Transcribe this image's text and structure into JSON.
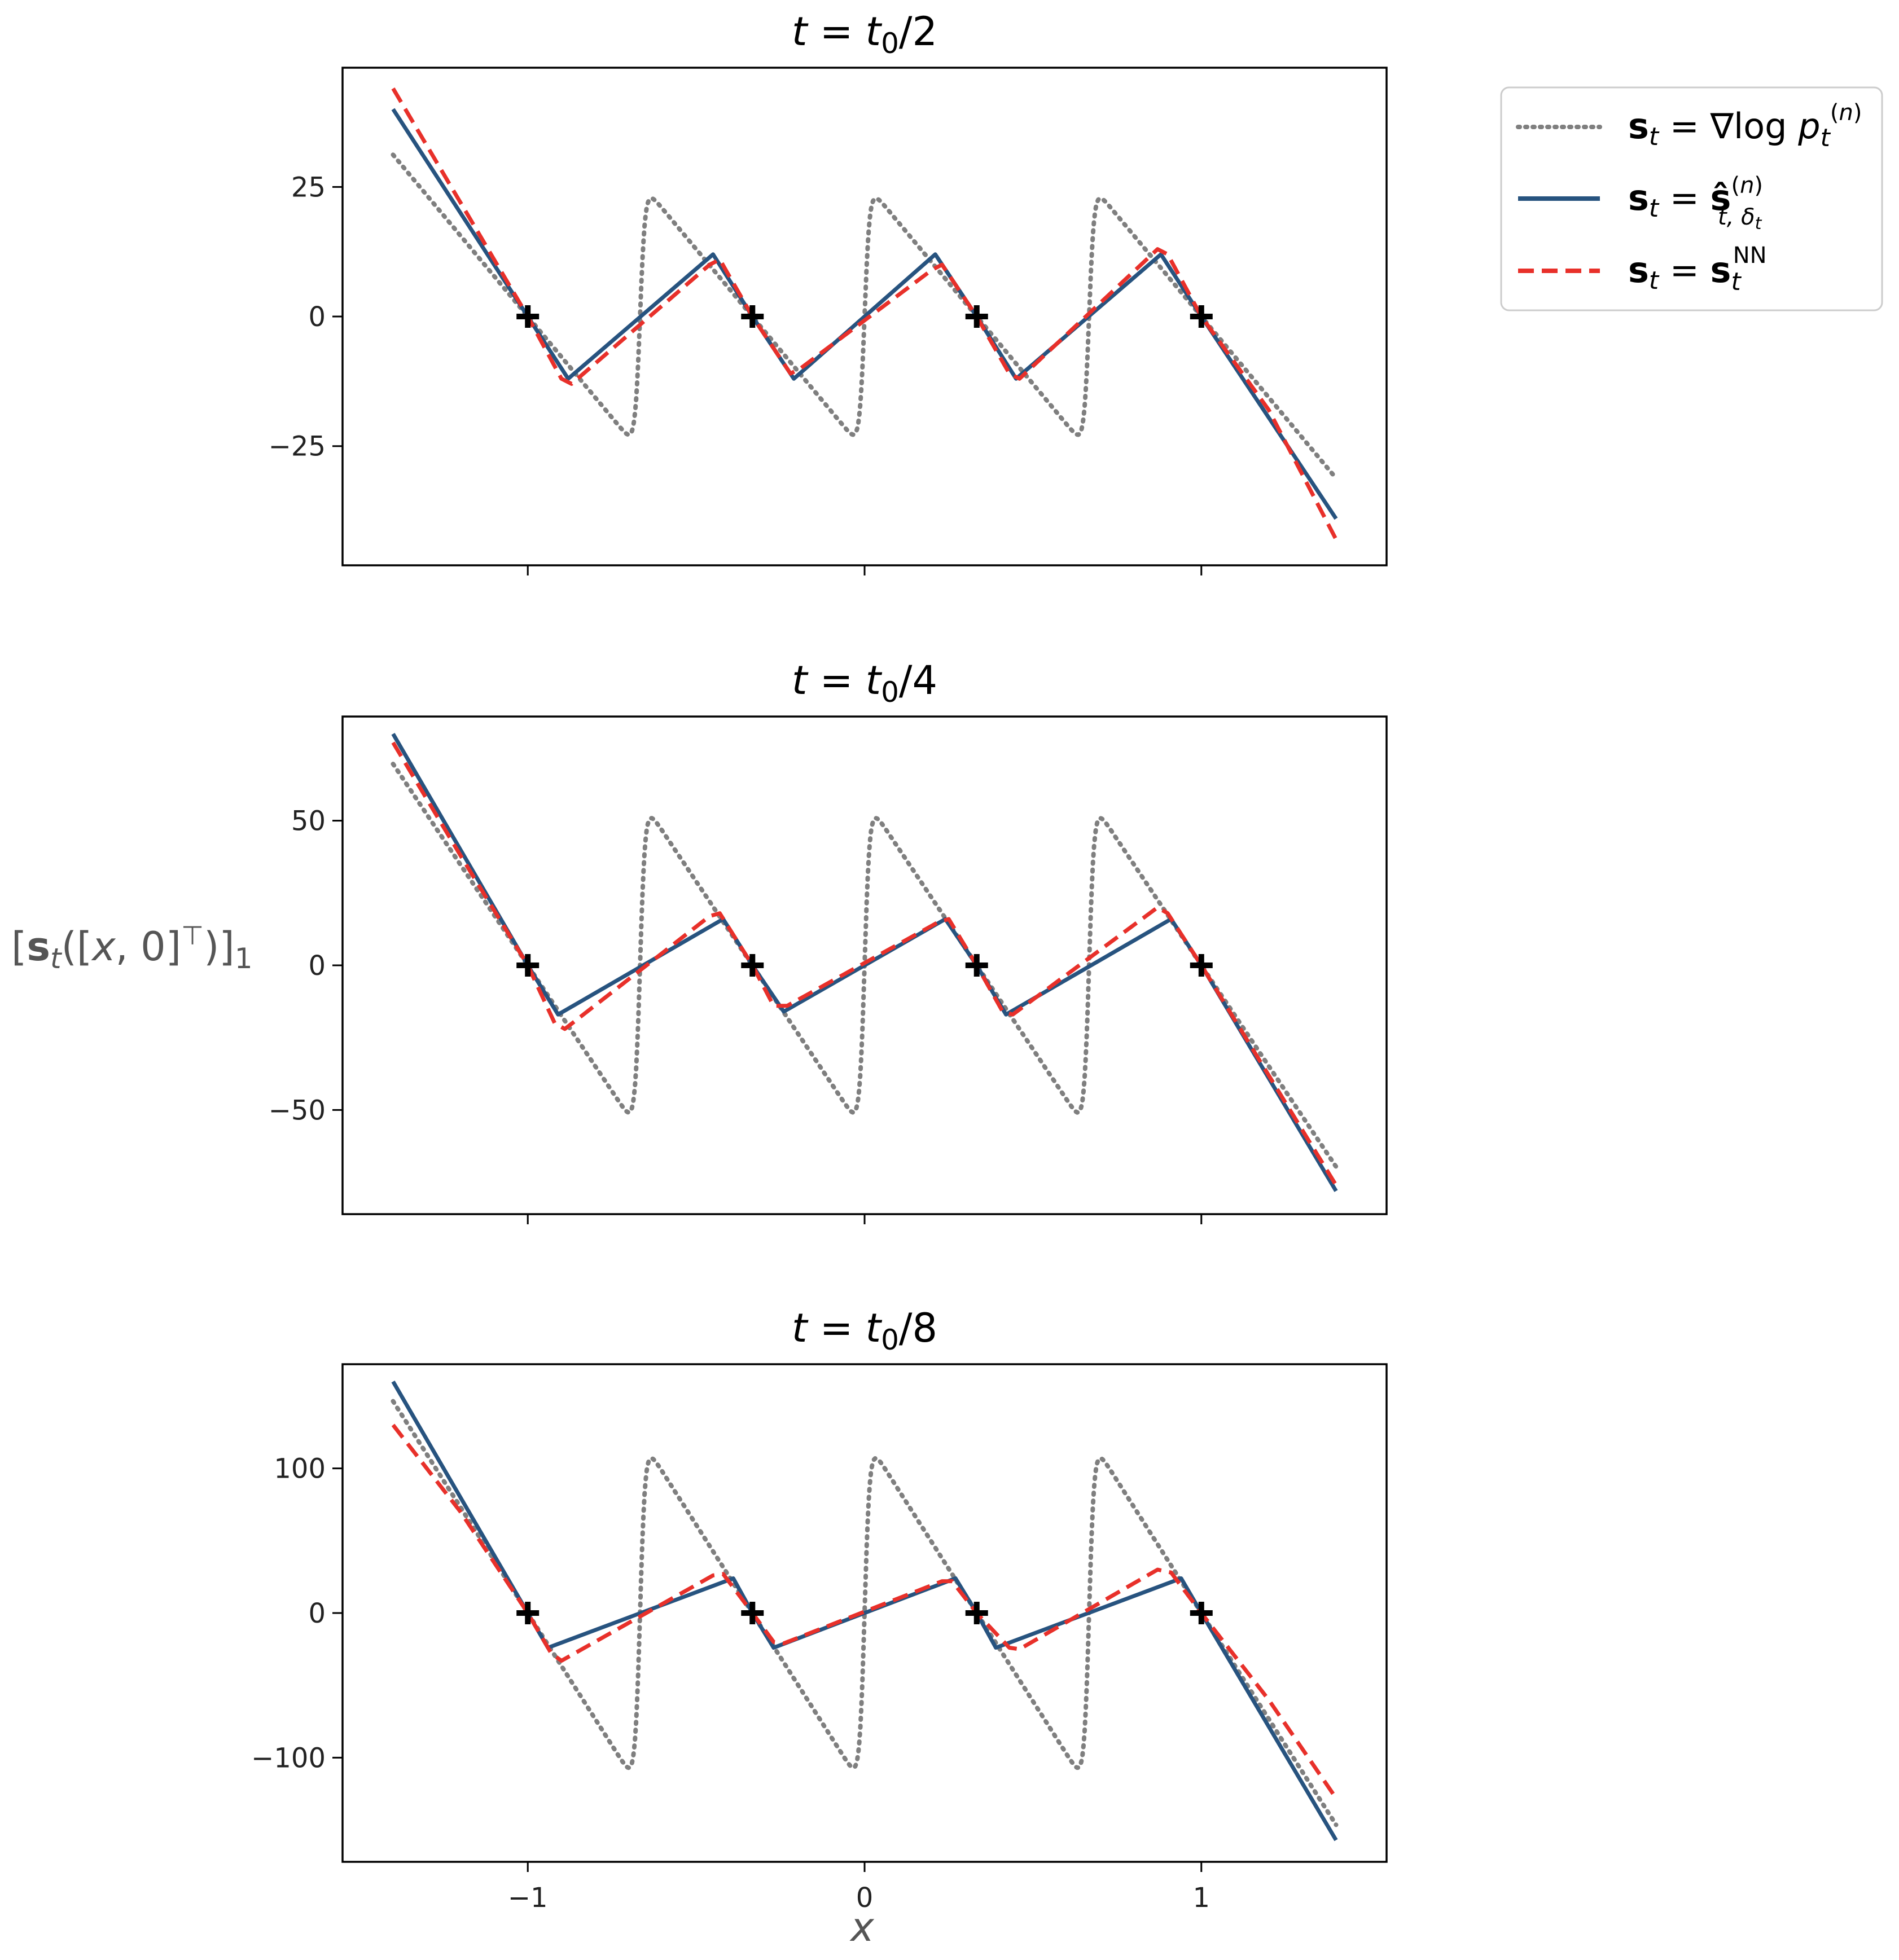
{
  "chart_data": {
    "type": "line",
    "shared_x_ticks": [
      "−1",
      "0",
      "1"
    ],
    "x_tick_values": [
      -1,
      0,
      1
    ],
    "xlim": [
      -1.55,
      1.55
    ],
    "xlabel": "x",
    "ylabel": "[s_t([x, 0]ᵀ)]₁",
    "legend": {
      "position": "upper-right-outside",
      "entries": [
        {
          "label": "s_t = ∇log p_t^(n)",
          "style": "dotted",
          "color": "#7f7f7f"
        },
        {
          "label": "s_t = ŝ^(n)_{t,δ_t}",
          "style": "solid",
          "color": "#27537f"
        },
        {
          "label": "s_t = s_t^NN",
          "style": "dashed",
          "color": "#e8302a"
        }
      ]
    },
    "markers": {
      "symbol": "+",
      "color": "#000000",
      "x": [
        -1,
        -0.333,
        0.333,
        1
      ],
      "y": 0
    },
    "panels": [
      {
        "title": "t = t0/2",
        "title_parts": [
          "t = t",
          "0",
          "/2"
        ],
        "ylim": [
          -48,
          48
        ],
        "y_ticks": [
          -25,
          0,
          25
        ],
        "y_tick_labels": [
          "−25",
          "0",
          "25"
        ],
        "series": [
          {
            "name": "s_t = ∇log p_t^(n)",
            "kind": "score",
            "amp": 26
          },
          {
            "name": "s_t = ŝ^(n)_{t,δ_t}",
            "x": [
              -1.4,
              -1.0,
              -0.88,
              -0.45,
              -0.333,
              -0.21,
              0.21,
              0.333,
              0.45,
              0.88,
              1.0,
              1.4
            ],
            "y": [
              40,
              0,
              -12,
              12,
              0,
              -12,
              12,
              0,
              -12,
              12,
              0,
              -39
            ]
          },
          {
            "name": "s_t = s_t^NN",
            "x": [
              -1.4,
              -1.2,
              -1.0,
              -0.9,
              -0.87,
              -0.46,
              -0.43,
              -0.333,
              -0.22,
              -0.19,
              0.2,
              0.23,
              0.333,
              0.43,
              0.46,
              0.87,
              0.9,
              1.0,
              1.2,
              1.4
            ],
            "y": [
              44,
              22,
              0,
              -12,
              -13,
              10,
              11,
              0,
              -11,
              -10,
              9,
              10,
              0,
              -11,
              -12,
              13,
              12,
              0,
              -18,
              -43
            ]
          }
        ]
      },
      {
        "title": "t = t0/4",
        "title_parts": [
          "t = t",
          "0",
          "/4"
        ],
        "ylim": [
          -86,
          86
        ],
        "y_ticks": [
          -50,
          0,
          50
        ],
        "y_tick_labels": [
          "−50",
          "0",
          "50"
        ],
        "series": [
          {
            "name": "s_t = ∇log p_t^(n)",
            "kind": "score",
            "amp": 58
          },
          {
            "name": "s_t = ŝ^(n)_{t,δ_t}",
            "x": [
              -1.4,
              -1.0,
              -0.91,
              -0.42,
              -0.333,
              -0.24,
              0.24,
              0.333,
              0.42,
              0.91,
              1.0,
              1.4
            ],
            "y": [
              80,
              0,
              -17,
              16,
              0,
              -16,
              16,
              0,
              -17,
              16,
              0,
              -78
            ]
          },
          {
            "name": "s_t = s_t^NN",
            "x": [
              -1.4,
              -1.2,
              -1.0,
              -0.92,
              -0.89,
              -0.46,
              -0.43,
              -0.333,
              -0.27,
              -0.23,
              0.22,
              0.25,
              0.333,
              0.41,
              0.44,
              0.87,
              0.9,
              1.0,
              1.2,
              1.4
            ],
            "y": [
              77,
              38,
              0,
              -20,
              -22,
              17,
              18,
              0,
              -14,
              -14,
              15,
              16,
              0,
              -16,
              -17,
              20,
              18,
              0,
              -38,
              -76
            ]
          }
        ]
      },
      {
        "title": "t = t0/8",
        "title_parts": [
          "t = t",
          "0",
          "/8"
        ],
        "ylim": [
          -172,
          172
        ],
        "y_ticks": [
          -100,
          0,
          100
        ],
        "y_tick_labels": [
          "−100",
          "0",
          "100"
        ],
        "series": [
          {
            "name": "s_t = ∇log p_t^(n)",
            "kind": "score",
            "amp": 122
          },
          {
            "name": "s_t = ŝ^(n)_{t,δ_t}",
            "x": [
              -1.4,
              -1.0,
              -0.94,
              -0.39,
              -0.333,
              -0.27,
              0.27,
              0.333,
              0.39,
              0.94,
              1.0,
              1.4
            ],
            "y": [
              160,
              0,
              -24,
              24,
              0,
              -24,
              24,
              0,
              -24,
              24,
              0,
              -157
            ]
          },
          {
            "name": "s_t = s_t^NN",
            "x": [
              -1.4,
              -1.2,
              -1.0,
              -0.93,
              -0.9,
              -0.45,
              -0.42,
              -0.333,
              -0.27,
              -0.24,
              0.23,
              0.26,
              0.333,
              0.43,
              0.46,
              0.87,
              0.91,
              1.0,
              1.2,
              1.4
            ],
            "y": [
              130,
              70,
              0,
              -28,
              -33,
              26,
              27,
              0,
              -20,
              -21,
              22,
              22,
              0,
              -24,
              -25,
              30,
              28,
              0,
              -60,
              -128
            ]
          }
        ]
      }
    ]
  }
}
